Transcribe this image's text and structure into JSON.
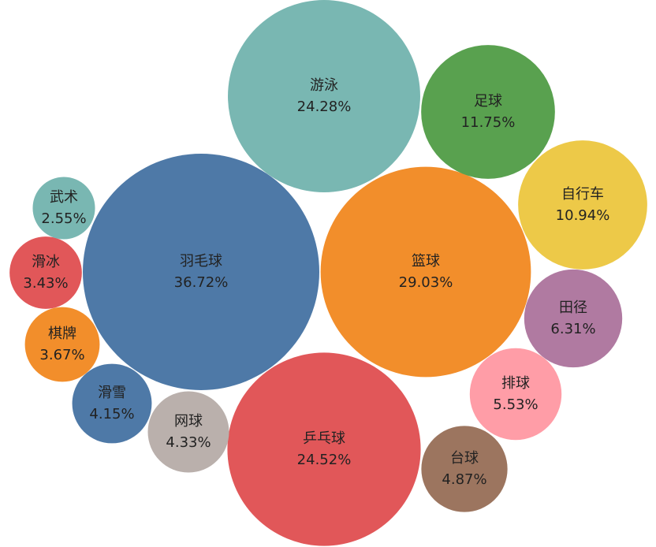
{
  "chart_data": {
    "type": "bubble",
    "categories": [
      "羽毛球",
      "篮球",
      "乒乓球",
      "游泳",
      "足球",
      "自行车",
      "田径",
      "排球",
      "台球",
      "网球",
      "滑雪",
      "棋牌",
      "滑冰",
      "武术"
    ],
    "values": [
      36.72,
      29.03,
      24.52,
      24.28,
      11.75,
      10.94,
      6.31,
      5.53,
      4.87,
      4.33,
      4.15,
      3.67,
      3.43,
      2.55
    ],
    "value_labels": [
      "36.72%",
      "29.03%",
      "24.52%",
      "24.28%",
      "11.75%",
      "10.94%",
      "6.31%",
      "5.53%",
      "4.87%",
      "4.33%",
      "4.15%",
      "3.67%",
      "3.43%",
      "2.55%"
    ],
    "colors": [
      "#4e79a7",
      "#f28e2b",
      "#e15759",
      "#79b7b2",
      "#59a14f",
      "#edc948",
      "#b07aa1",
      "#ff9da7",
      "#9c755f",
      "#bab0ac",
      "#4e79a7",
      "#f28e2b",
      "#e15759",
      "#79b7b2"
    ]
  }
}
